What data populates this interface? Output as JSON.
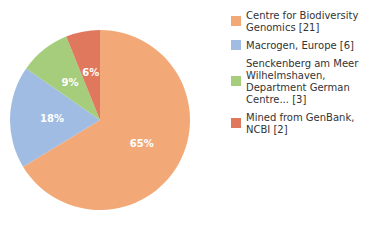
{
  "chart_data": {
    "type": "pie",
    "categories": [
      "Centre for Biodiversity Genomics [21]",
      "Macrogen, Europe [6]",
      "Senckenberg am Meer Wilhelmshaven, Department German Centre... [3]",
      "Mined from GenBank, NCBI [2]"
    ],
    "values": [
      65,
      18,
      9,
      6
    ],
    "value_labels": [
      "65%",
      "18%",
      "9%",
      "6%"
    ],
    "colors": [
      "#f3a977",
      "#a0bce3",
      "#a5cd7b",
      "#e0785e"
    ],
    "data_labels": true,
    "legend": "right"
  }
}
